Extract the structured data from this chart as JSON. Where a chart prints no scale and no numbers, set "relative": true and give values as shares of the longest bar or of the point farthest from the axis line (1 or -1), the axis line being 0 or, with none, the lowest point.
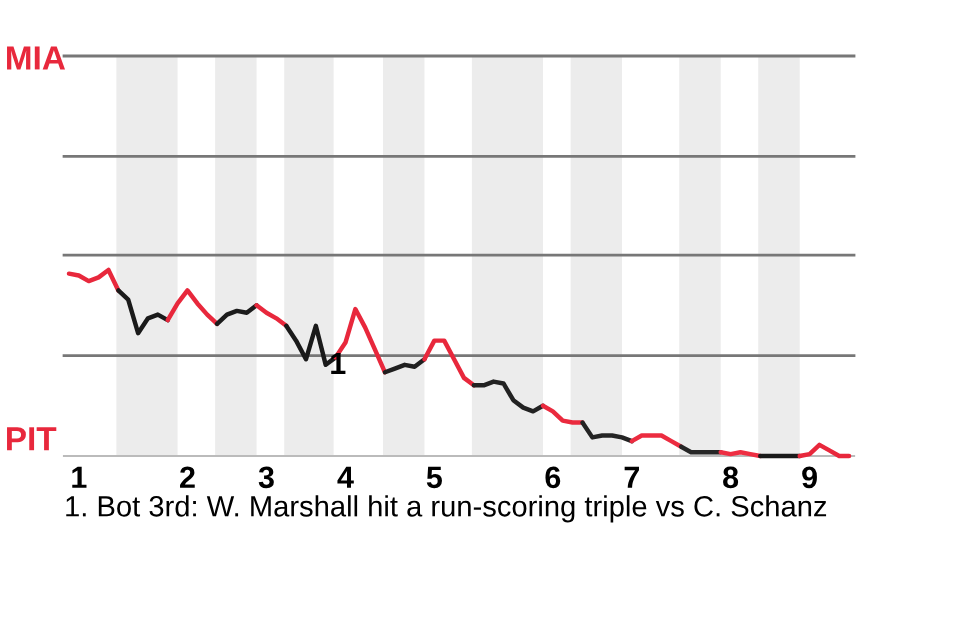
{
  "chart_data": {
    "type": "line",
    "relative": true,
    "categories": [
      null,
      "1",
      null,
      null,
      null,
      null,
      null,
      null,
      null,
      null,
      null,
      null,
      "2",
      null,
      null,
      null,
      null,
      null,
      null,
      null,
      "3",
      null,
      null,
      null,
      null,
      null,
      null,
      null,
      "4",
      null,
      null,
      null,
      null,
      null,
      null,
      null,
      null,
      "5",
      null,
      null,
      null,
      null,
      null,
      null,
      null,
      null,
      null,
      null,
      null,
      "6",
      null,
      null,
      null,
      null,
      null,
      null,
      null,
      "7",
      null,
      null,
      null,
      null,
      null,
      null,
      null,
      null,
      null,
      "8",
      null,
      null,
      null,
      null,
      null,
      null,
      null,
      "9",
      null,
      null,
      null,
      null
    ],
    "ref_lines": [
      {
        "axis": "y",
        "value": 0.54,
        "color": "#777777"
      },
      {
        "axis": "y",
        "value": 1.08,
        "color": "#777777"
      },
      {
        "axis": "y",
        "value": 1.61,
        "color": "#777777"
      },
      {
        "axis": "y",
        "value": 2.15,
        "color": "#777777"
      }
    ],
    "marker": "none",
    "line_style": "solid",
    "series": [
      {
        "color": "#e8283c",
        "values": [
          0.98,
          0.97,
          0.94,
          0.96,
          1,
          0.89,
          null,
          null,
          null,
          null,
          null,
          null,
          null,
          null,
          null,
          null,
          null,
          null,
          null,
          null,
          null,
          null,
          null,
          null,
          null,
          null,
          null,
          null,
          null,
          null,
          null,
          null,
          null,
          null,
          null,
          null,
          null,
          null,
          null,
          null,
          null,
          null,
          null,
          null,
          null,
          null,
          null,
          null,
          null,
          null,
          null,
          null,
          null,
          null,
          null,
          null,
          null,
          null,
          null,
          null,
          null,
          null,
          null,
          null,
          null,
          null,
          null,
          null,
          null,
          null,
          null,
          null,
          null,
          null,
          null,
          null,
          null,
          null,
          null,
          null
        ]
      },
      {
        "color": "#1a1a1a",
        "values": [
          null,
          null,
          null,
          null,
          null,
          0.89,
          0.84,
          0.66,
          0.74,
          0.76,
          0.73,
          null,
          null,
          null,
          null,
          null,
          null,
          null,
          null,
          null,
          null,
          null,
          null,
          null,
          null,
          null,
          null,
          null,
          null,
          null,
          null,
          null,
          null,
          null,
          null,
          null,
          null,
          null,
          null,
          null,
          null,
          null,
          null,
          null,
          null,
          null,
          null,
          null,
          null,
          null,
          null,
          null,
          null,
          null,
          null,
          null,
          null,
          null,
          null,
          null,
          null,
          null,
          null,
          null,
          null,
          null,
          null,
          null,
          null,
          null,
          null,
          null,
          null,
          null,
          null,
          null,
          null,
          null,
          null,
          null
        ]
      },
      {
        "color": "#e8283c",
        "values": [
          null,
          null,
          null,
          null,
          null,
          null,
          null,
          null,
          null,
          null,
          0.73,
          0.82,
          0.89,
          0.82,
          0.76,
          0.71,
          null,
          null,
          null,
          null,
          null,
          null,
          null,
          null,
          null,
          null,
          null,
          null,
          null,
          null,
          null,
          null,
          null,
          null,
          null,
          null,
          null,
          null,
          null,
          null,
          null,
          null,
          null,
          null,
          null,
          null,
          null,
          null,
          null,
          null,
          null,
          null,
          null,
          null,
          null,
          null,
          null,
          null,
          null,
          null,
          null,
          null,
          null,
          null,
          null,
          null,
          null,
          null,
          null,
          null,
          null,
          null,
          null,
          null,
          null,
          null,
          null,
          null,
          null,
          null
        ]
      },
      {
        "color": "#1c1c1c",
        "values": [
          null,
          null,
          null,
          null,
          null,
          null,
          null,
          null,
          null,
          null,
          null,
          null,
          null,
          null,
          null,
          0.71,
          0.76,
          0.78,
          0.77,
          0.81,
          null,
          null,
          null,
          null,
          null,
          null,
          null,
          null,
          null,
          null,
          null,
          null,
          null,
          null,
          null,
          null,
          null,
          null,
          null,
          null,
          null,
          null,
          null,
          null,
          null,
          null,
          null,
          null,
          null,
          null,
          null,
          null,
          null,
          null,
          null,
          null,
          null,
          null,
          null,
          null,
          null,
          null,
          null,
          null,
          null,
          null,
          null,
          null,
          null,
          null,
          null,
          null,
          null,
          null,
          null,
          null,
          null,
          null,
          null,
          null
        ]
      },
      {
        "color": "#e8283c",
        "values": [
          null,
          null,
          null,
          null,
          null,
          null,
          null,
          null,
          null,
          null,
          null,
          null,
          null,
          null,
          null,
          null,
          null,
          null,
          null,
          0.81,
          0.77,
          0.74,
          0.7,
          null,
          null,
          null,
          null,
          null,
          null,
          null,
          null,
          null,
          null,
          null,
          null,
          null,
          null,
          null,
          null,
          null,
          null,
          null,
          null,
          null,
          null,
          null,
          null,
          null,
          null,
          null,
          null,
          null,
          null,
          null,
          null,
          null,
          null,
          null,
          null,
          null,
          null,
          null,
          null,
          null,
          null,
          null,
          null,
          null,
          null,
          null,
          null,
          null,
          null,
          null,
          null,
          null,
          null,
          null,
          null,
          null
        ]
      },
      {
        "color": "#1a1a1a",
        "values": [
          null,
          null,
          null,
          null,
          null,
          null,
          null,
          null,
          null,
          null,
          null,
          null,
          null,
          null,
          null,
          null,
          null,
          null,
          null,
          null,
          null,
          null,
          0.7,
          0.62,
          0.52,
          0.7,
          0.49,
          0.53,
          null,
          null,
          null,
          null,
          null,
          null,
          null,
          null,
          null,
          null,
          null,
          null,
          null,
          null,
          null,
          null,
          null,
          null,
          null,
          null,
          null,
          null,
          null,
          null,
          null,
          null,
          null,
          null,
          null,
          null,
          null,
          null,
          null,
          null,
          null,
          null,
          null,
          null,
          null,
          null,
          null,
          null,
          null,
          null,
          null,
          null,
          null,
          null,
          null,
          null,
          null,
          null
        ]
      },
      {
        "color": "#e8283c",
        "values": [
          null,
          null,
          null,
          null,
          null,
          null,
          null,
          null,
          null,
          null,
          null,
          null,
          null,
          null,
          null,
          null,
          null,
          null,
          null,
          null,
          null,
          null,
          null,
          null,
          null,
          null,
          null,
          0.53,
          0.61,
          0.79,
          0.69,
          0.57,
          0.45,
          null,
          null,
          null,
          null,
          null,
          null,
          null,
          null,
          null,
          null,
          null,
          null,
          null,
          null,
          null,
          null,
          null,
          null,
          null,
          null,
          null,
          null,
          null,
          null,
          null,
          null,
          null,
          null,
          null,
          null,
          null,
          null,
          null,
          null,
          null,
          null,
          null,
          null,
          null,
          null,
          null,
          null,
          null,
          null,
          null,
          null,
          null
        ]
      },
      {
        "color": "#202020",
        "values": [
          null,
          null,
          null,
          null,
          null,
          null,
          null,
          null,
          null,
          null,
          null,
          null,
          null,
          null,
          null,
          null,
          null,
          null,
          null,
          null,
          null,
          null,
          null,
          null,
          null,
          null,
          null,
          null,
          null,
          null,
          null,
          null,
          0.45,
          0.47,
          0.49,
          0.48,
          0.52,
          null,
          null,
          null,
          null,
          null,
          null,
          null,
          null,
          null,
          null,
          null,
          null,
          null,
          null,
          null,
          null,
          null,
          null,
          null,
          null,
          null,
          null,
          null,
          null,
          null,
          null,
          null,
          null,
          null,
          null,
          null,
          null,
          null,
          null,
          null,
          null,
          null,
          null,
          null,
          null,
          null,
          null,
          null
        ]
      },
      {
        "color": "#e8283c",
        "values": [
          null,
          null,
          null,
          null,
          null,
          null,
          null,
          null,
          null,
          null,
          null,
          null,
          null,
          null,
          null,
          null,
          null,
          null,
          null,
          null,
          null,
          null,
          null,
          null,
          null,
          null,
          null,
          null,
          null,
          null,
          null,
          null,
          null,
          null,
          null,
          null,
          0.52,
          0.62,
          0.62,
          0.52,
          0.42,
          0.38,
          null,
          null,
          null,
          null,
          null,
          null,
          null,
          null,
          null,
          null,
          null,
          null,
          null,
          null,
          null,
          null,
          null,
          null,
          null,
          null,
          null,
          null,
          null,
          null,
          null,
          null,
          null,
          null,
          null,
          null,
          null,
          null,
          null,
          null,
          null,
          null,
          null,
          null
        ]
      },
      {
        "color": "#222222",
        "values": [
          null,
          null,
          null,
          null,
          null,
          null,
          null,
          null,
          null,
          null,
          null,
          null,
          null,
          null,
          null,
          null,
          null,
          null,
          null,
          null,
          null,
          null,
          null,
          null,
          null,
          null,
          null,
          null,
          null,
          null,
          null,
          null,
          null,
          null,
          null,
          null,
          null,
          null,
          null,
          null,
          null,
          0.38,
          0.38,
          0.4,
          0.39,
          0.3,
          0.26,
          0.24,
          0.27,
          null,
          null,
          null,
          null,
          null,
          null,
          null,
          null,
          null,
          null,
          null,
          null,
          null,
          null,
          null,
          null,
          null,
          null,
          null,
          null,
          null,
          null,
          null,
          null,
          null,
          null,
          null,
          null,
          null,
          null,
          null
        ]
      },
      {
        "color": "#ea2a3e",
        "values": [
          null,
          null,
          null,
          null,
          null,
          null,
          null,
          null,
          null,
          null,
          null,
          null,
          null,
          null,
          null,
          null,
          null,
          null,
          null,
          null,
          null,
          null,
          null,
          null,
          null,
          null,
          null,
          null,
          null,
          null,
          null,
          null,
          null,
          null,
          null,
          null,
          null,
          null,
          null,
          null,
          null,
          null,
          null,
          null,
          null,
          null,
          null,
          null,
          0.27,
          0.24,
          0.19,
          0.18,
          0.18,
          null,
          null,
          null,
          null,
          null,
          null,
          null,
          null,
          null,
          null,
          null,
          null,
          null,
          null,
          null,
          null,
          null,
          null,
          null,
          null,
          null,
          null,
          null,
          null,
          null,
          null,
          null
        ]
      },
      {
        "color": "#242424",
        "values": [
          null,
          null,
          null,
          null,
          null,
          null,
          null,
          null,
          null,
          null,
          null,
          null,
          null,
          null,
          null,
          null,
          null,
          null,
          null,
          null,
          null,
          null,
          null,
          null,
          null,
          null,
          null,
          null,
          null,
          null,
          null,
          null,
          null,
          null,
          null,
          null,
          null,
          null,
          null,
          null,
          null,
          null,
          null,
          null,
          null,
          null,
          null,
          null,
          null,
          null,
          null,
          null,
          0.18,
          0.1,
          0.11,
          0.11,
          0.1,
          0.08,
          null,
          null,
          null,
          null,
          null,
          null,
          null,
          null,
          null,
          null,
          null,
          null,
          null,
          null,
          null,
          null,
          null,
          null,
          null,
          null,
          null,
          null
        ]
      },
      {
        "color": "#ec2c40",
        "values": [
          null,
          null,
          null,
          null,
          null,
          null,
          null,
          null,
          null,
          null,
          null,
          null,
          null,
          null,
          null,
          null,
          null,
          null,
          null,
          null,
          null,
          null,
          null,
          null,
          null,
          null,
          null,
          null,
          null,
          null,
          null,
          null,
          null,
          null,
          null,
          null,
          null,
          null,
          null,
          null,
          null,
          null,
          null,
          null,
          null,
          null,
          null,
          null,
          null,
          null,
          null,
          null,
          null,
          null,
          null,
          null,
          null,
          0.08,
          0.11,
          0.11,
          0.11,
          0.08,
          0.05,
          null,
          null,
          null,
          null,
          null,
          null,
          null,
          null,
          null,
          null,
          null,
          null,
          null,
          null,
          null,
          null,
          null
        ]
      },
      {
        "color": "#262626",
        "values": [
          null,
          null,
          null,
          null,
          null,
          null,
          null,
          null,
          null,
          null,
          null,
          null,
          null,
          null,
          null,
          null,
          null,
          null,
          null,
          null,
          null,
          null,
          null,
          null,
          null,
          null,
          null,
          null,
          null,
          null,
          null,
          null,
          null,
          null,
          null,
          null,
          null,
          null,
          null,
          null,
          null,
          null,
          null,
          null,
          null,
          null,
          null,
          null,
          null,
          null,
          null,
          null,
          null,
          null,
          null,
          null,
          null,
          null,
          null,
          null,
          null,
          null,
          0.05,
          0.02,
          0.02,
          0.02,
          0.02,
          null,
          null,
          null,
          null,
          null,
          null,
          null,
          null,
          null,
          null,
          null,
          null,
          null
        ]
      },
      {
        "color": "#ee2e42",
        "values": [
          null,
          null,
          null,
          null,
          null,
          null,
          null,
          null,
          null,
          null,
          null,
          null,
          null,
          null,
          null,
          null,
          null,
          null,
          null,
          null,
          null,
          null,
          null,
          null,
          null,
          null,
          null,
          null,
          null,
          null,
          null,
          null,
          null,
          null,
          null,
          null,
          null,
          null,
          null,
          null,
          null,
          null,
          null,
          null,
          null,
          null,
          null,
          null,
          null,
          null,
          null,
          null,
          null,
          null,
          null,
          null,
          null,
          null,
          null,
          null,
          null,
          null,
          null,
          null,
          null,
          null,
          0.02,
          0.01,
          0.02,
          0.01,
          0,
          null,
          null,
          null,
          null,
          null,
          null,
          null,
          null,
          null
        ]
      },
      {
        "color": "#1a1a1a",
        "values": [
          null,
          null,
          null,
          null,
          null,
          null,
          null,
          null,
          null,
          null,
          null,
          null,
          null,
          null,
          null,
          null,
          null,
          null,
          null,
          null,
          null,
          null,
          null,
          null,
          null,
          null,
          null,
          null,
          null,
          null,
          null,
          null,
          null,
          null,
          null,
          null,
          null,
          null,
          null,
          null,
          null,
          null,
          null,
          null,
          null,
          null,
          null,
          null,
          null,
          null,
          null,
          null,
          null,
          null,
          null,
          null,
          null,
          null,
          null,
          null,
          null,
          null,
          null,
          null,
          null,
          null,
          null,
          null,
          null,
          null,
          0,
          0,
          0,
          0,
          0,
          null,
          null,
          null,
          null,
          null
        ]
      },
      {
        "color": "#e8283c",
        "values": [
          null,
          null,
          null,
          null,
          null,
          null,
          null,
          null,
          null,
          null,
          null,
          null,
          null,
          null,
          null,
          null,
          null,
          null,
          null,
          null,
          null,
          null,
          null,
          null,
          null,
          null,
          null,
          null,
          null,
          null,
          null,
          null,
          null,
          null,
          null,
          null,
          null,
          null,
          null,
          null,
          null,
          null,
          null,
          null,
          null,
          null,
          null,
          null,
          null,
          null,
          null,
          null,
          null,
          null,
          null,
          null,
          null,
          null,
          null,
          null,
          null,
          null,
          null,
          null,
          null,
          null,
          null,
          null,
          null,
          null,
          null,
          null,
          null,
          null,
          0,
          0.01,
          0.06,
          0.03,
          0,
          0
        ]
      }
    ],
    "annotations": [
      "MIA",
      "PIT",
      "1",
      "1. Bot 3rd: W. Marshall hit a run-scoring triple vs C. Schanz"
    ]
  }
}
